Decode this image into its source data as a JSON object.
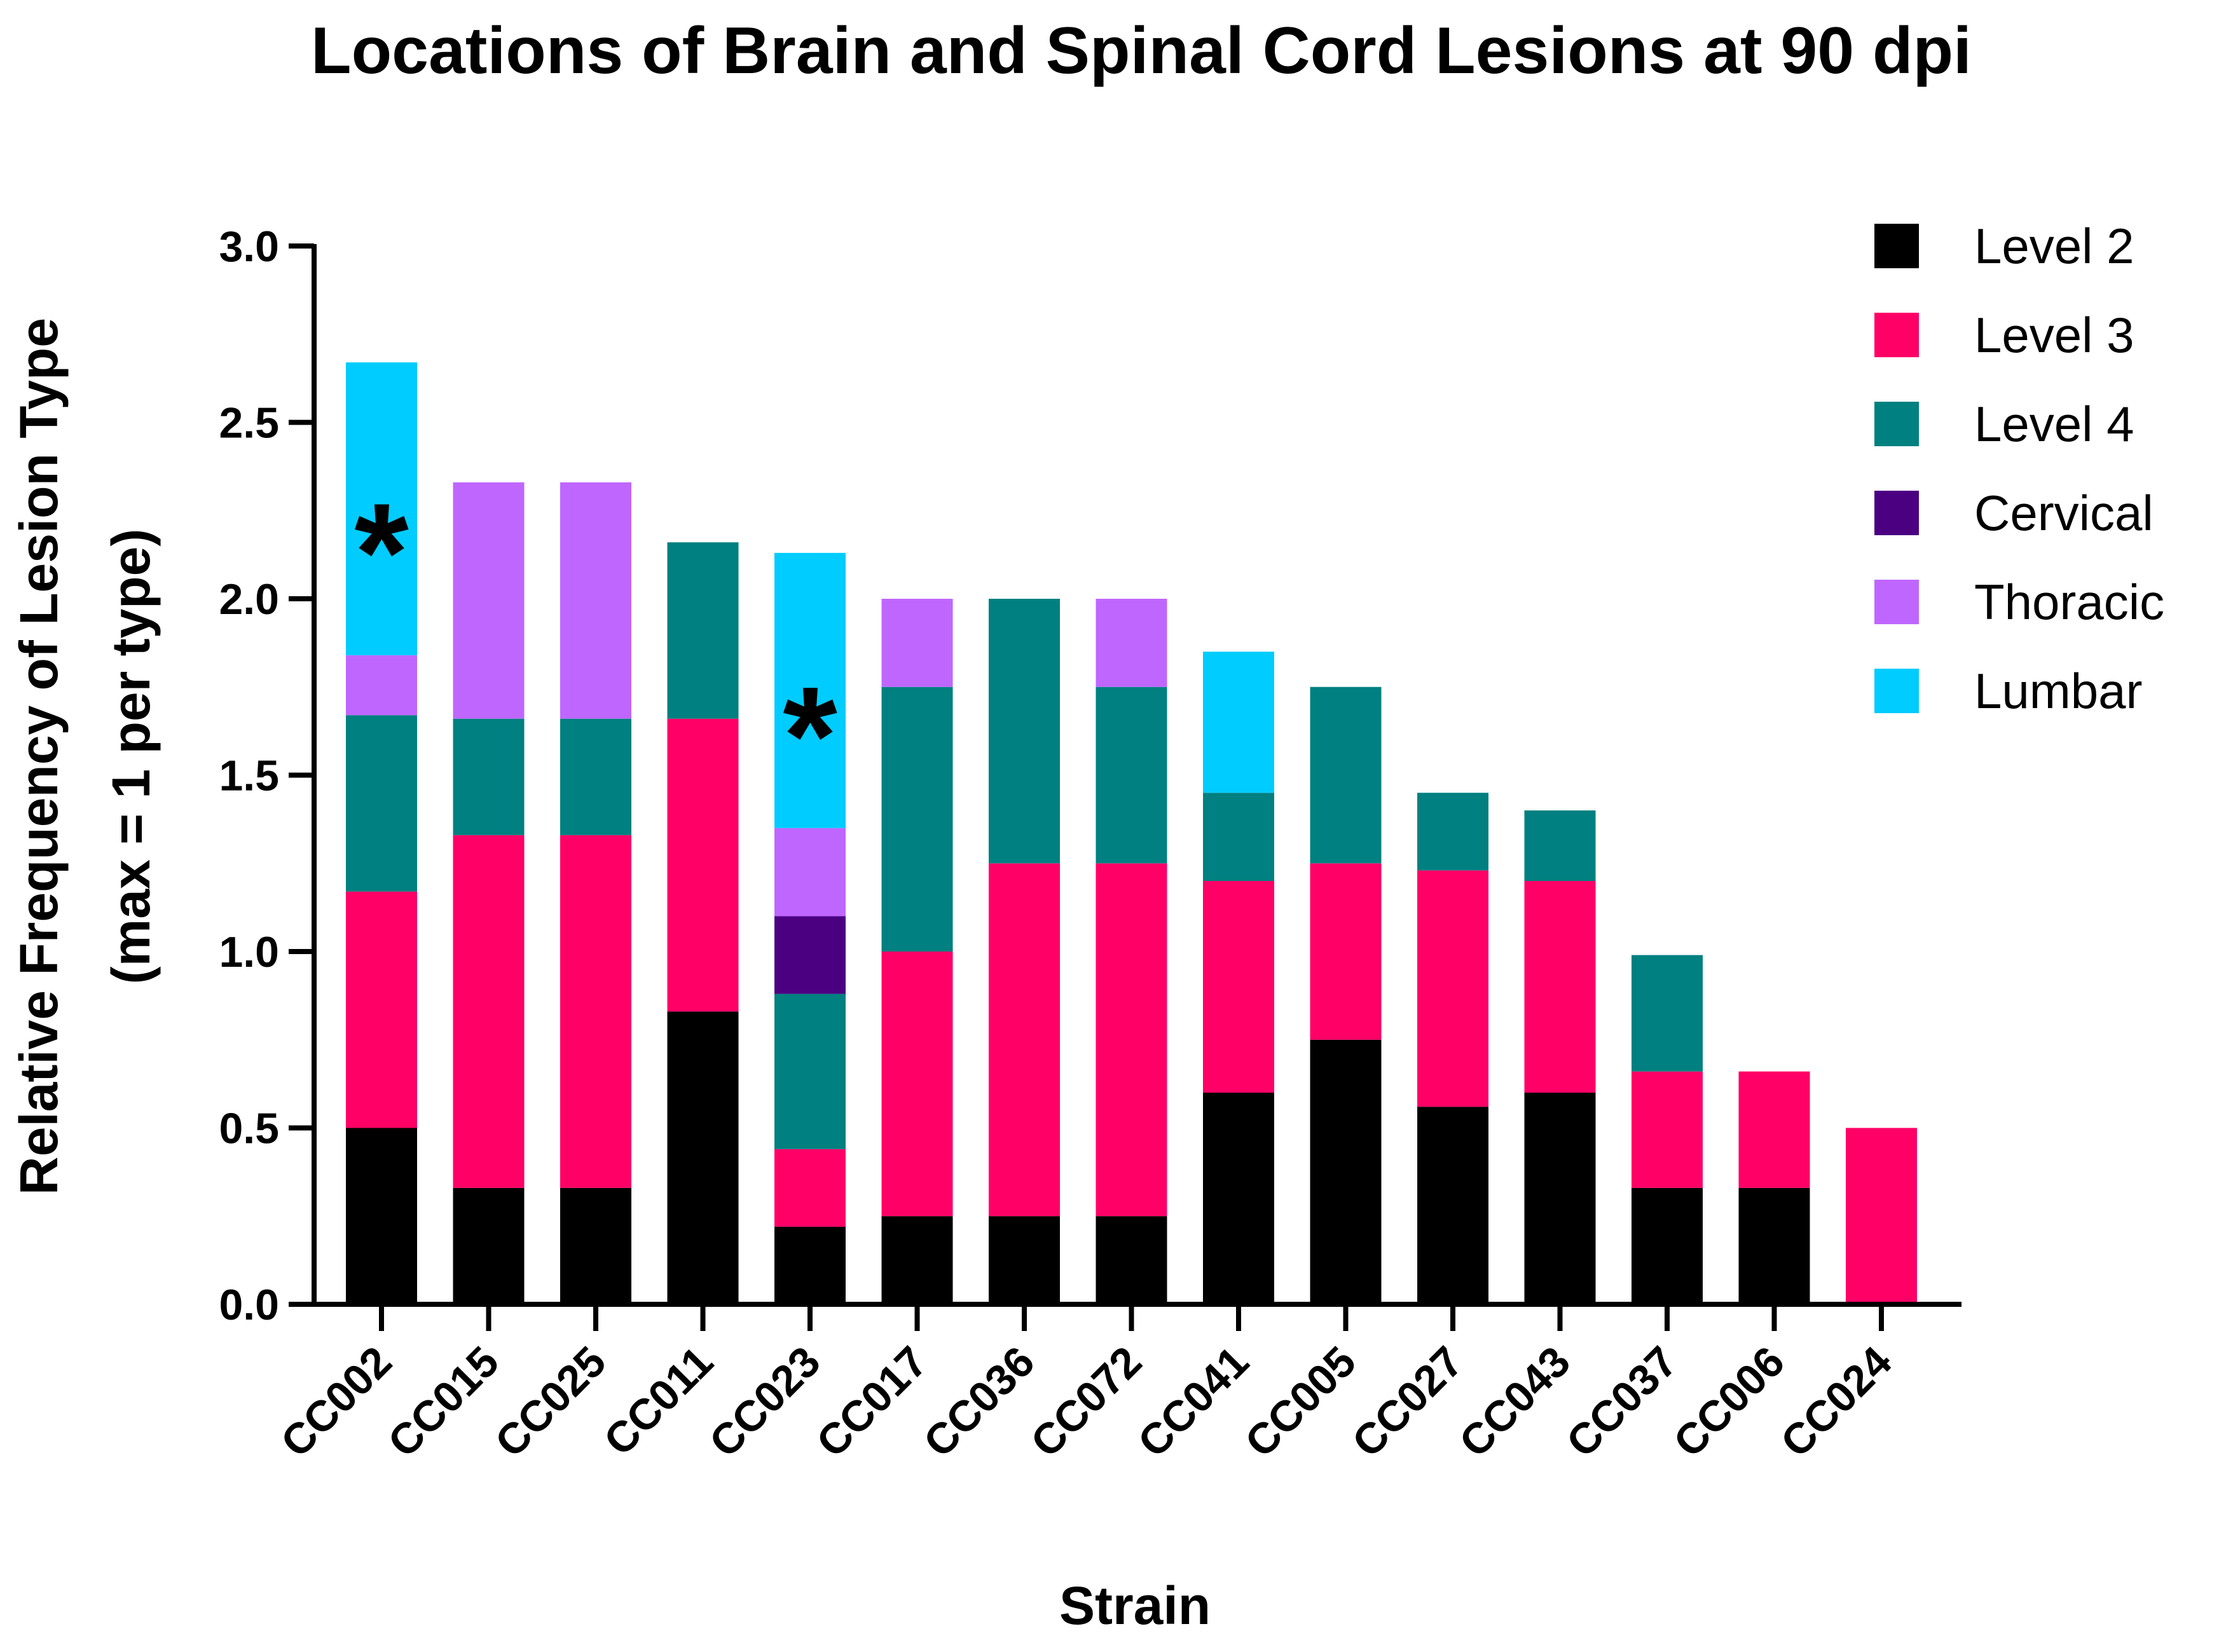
{
  "chart_data": {
    "type": "bar",
    "stacked": true,
    "title": "Locations of Brain and Spinal Cord Lesions at 90 dpi",
    "xlabel": "Strain",
    "ylabel": "Relative Frequency of Lesion Type",
    "ylabel2": "(max = 1 per type)",
    "ylim": [
      0,
      3.0
    ],
    "yticks": [
      "0.0",
      "0.5",
      "1.0",
      "1.5",
      "2.0",
      "2.5",
      "3.0"
    ],
    "legend_position": "top-right",
    "categories": [
      "CC002",
      "CC015",
      "CC025",
      "CC011",
      "CC023",
      "CC017",
      "CC036",
      "CC072",
      "CC041",
      "CC005",
      "CC027",
      "CC043",
      "CC037",
      "CC006",
      "CC024"
    ],
    "series": [
      {
        "name": "Level 2",
        "color": "#000000",
        "values": [
          0.5,
          0.33,
          0.33,
          0.83,
          0.22,
          0.25,
          0.25,
          0.25,
          0.6,
          0.75,
          0.56,
          0.6,
          0.33,
          0.33,
          0.0
        ]
      },
      {
        "name": "Level 3",
        "color": "#FF0066",
        "values": [
          0.67,
          1.0,
          1.0,
          0.83,
          0.22,
          0.75,
          1.0,
          1.0,
          0.6,
          0.5,
          0.67,
          0.6,
          0.33,
          0.33,
          0.5
        ]
      },
      {
        "name": "Level 4",
        "color": "#008080",
        "values": [
          0.5,
          0.33,
          0.33,
          0.5,
          0.44,
          0.75,
          0.75,
          0.5,
          0.25,
          0.5,
          0.22,
          0.2,
          0.33,
          0.0,
          0.0
        ]
      },
      {
        "name": "Cervical",
        "color": "#4B0082",
        "values": [
          0.0,
          0.0,
          0.0,
          0.0,
          0.22,
          0.0,
          0.0,
          0.0,
          0.0,
          0.0,
          0.0,
          0.0,
          0.0,
          0.0,
          0.0
        ]
      },
      {
        "name": "Thoracic",
        "color": "#BF66FF",
        "values": [
          0.17,
          0.67,
          0.67,
          0.0,
          0.25,
          0.25,
          0.0,
          0.25,
          0.0,
          0.0,
          0.0,
          0.0,
          0.0,
          0.0,
          0.0
        ]
      },
      {
        "name": "Lumbar",
        "color": "#00CCFF",
        "values": [
          0.83,
          0.0,
          0.0,
          0.0,
          0.78,
          0.0,
          0.0,
          0.0,
          0.4,
          0.0,
          0.0,
          0.0,
          0.0,
          0.0,
          0.0
        ]
      }
    ],
    "annotations": [
      {
        "text": "*",
        "category": "CC002",
        "y": 2.22
      },
      {
        "text": "*",
        "category": "CC023",
        "y": 1.7
      }
    ]
  }
}
